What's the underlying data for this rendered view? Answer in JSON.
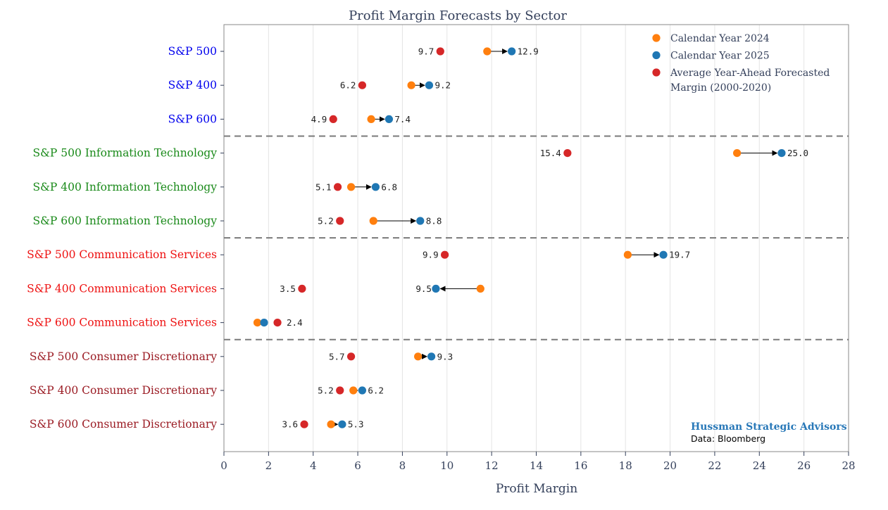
{
  "chart_data": {
    "type": "scatter",
    "title": "Profit Margin Forecasts by Sector",
    "xlabel": "Profit Margin",
    "xlim": [
      0,
      28
    ],
    "x_ticks": [
      "0",
      "2",
      "4",
      "6",
      "8",
      "10",
      "12",
      "14",
      "16",
      "18",
      "20",
      "22",
      "24",
      "26",
      "28"
    ],
    "grid": "vertical",
    "legend_position": "top-right",
    "series_names": {
      "cy2024": "Calendar Year 2024",
      "cy2025": "Calendar Year 2025",
      "avg": "Average Year-Ahead Forecasted Margin (2000-2020)"
    },
    "series_colors": {
      "cy2024": "#ff7f0e",
      "cy2025": "#1f77b4",
      "avg": "#d62728"
    },
    "group_colors": {
      "index": "#0000ee",
      "tech": "#1a8a1a",
      "comm": "#ee1111",
      "disc": "#9b1c24"
    },
    "rows": [
      {
        "label": "S&P 500",
        "group": "index",
        "cy2024": 11.8,
        "cy2025": 12.9,
        "avg": 9.7,
        "avg_label": "9.7",
        "cy2025_label": "12.9"
      },
      {
        "label": "S&P 400",
        "group": "index",
        "cy2024": 8.4,
        "cy2025": 9.2,
        "avg": 6.2,
        "avg_label": "6.2",
        "cy2025_label": "9.2"
      },
      {
        "label": "S&P 600",
        "group": "index",
        "cy2024": 6.6,
        "cy2025": 7.4,
        "avg": 4.9,
        "avg_label": "4.9",
        "cy2025_label": "7.4"
      },
      {
        "label": "S&P 500 Information Technology",
        "group": "tech",
        "cy2024": 23.0,
        "cy2025": 25.0,
        "avg": 15.4,
        "avg_label": "15.4",
        "cy2025_label": "25.0"
      },
      {
        "label": "S&P 400 Information Technology",
        "group": "tech",
        "cy2024": 5.7,
        "cy2025": 6.8,
        "avg": 5.1,
        "avg_label": "5.1",
        "cy2025_label": "6.8"
      },
      {
        "label": "S&P 600 Information Technology",
        "group": "tech",
        "cy2024": 6.7,
        "cy2025": 8.8,
        "avg": 5.2,
        "avg_label": "5.2",
        "cy2025_label": "8.8"
      },
      {
        "label": "S&P 500 Communication Services",
        "group": "comm",
        "cy2024": 18.1,
        "cy2025": 19.7,
        "avg": 9.9,
        "avg_label": "9.9",
        "cy2025_label": "19.7"
      },
      {
        "label": "S&P 400 Communication Services",
        "group": "comm",
        "cy2024": 11.5,
        "cy2025": 9.5,
        "avg": 3.5,
        "avg_label": "3.5",
        "cy2025_label": "9.5"
      },
      {
        "label": "S&P 600 Communication Services",
        "group": "comm",
        "cy2024": 1.5,
        "cy2025": 1.8,
        "avg": 2.4,
        "avg_label": "2.4",
        "cy2025_label": ""
      },
      {
        "label": "S&P 500 Consumer Discretionary",
        "group": "disc",
        "cy2024": 8.7,
        "cy2025": 9.3,
        "avg": 5.7,
        "avg_label": "5.7",
        "cy2025_label": "9.3"
      },
      {
        "label": "S&P 400 Consumer Discretionary",
        "group": "disc",
        "cy2024": 5.8,
        "cy2025": 6.2,
        "avg": 5.2,
        "avg_label": "5.2",
        "cy2025_label": "6.2"
      },
      {
        "label": "S&P 600 Consumer Discretionary",
        "group": "disc",
        "cy2024": 4.8,
        "cy2025": 5.3,
        "avg": 3.6,
        "avg_label": "3.6",
        "cy2025_label": "5.3"
      }
    ],
    "separators_after_rows": [
      2,
      5,
      8
    ]
  },
  "credits": {
    "main": "Hussman Strategic Advisors",
    "main_color": "#2878b8",
    "sub": "Data: Bloomberg"
  }
}
